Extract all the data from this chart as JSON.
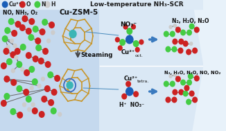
{
  "title": "Low-temperature NH₃-SCR",
  "subtitle": "Cu-ZSM-5",
  "legend_items": [
    {
      "label": "Cu²⁺",
      "color": "#1a5eb8"
    },
    {
      "label": "O",
      "color": "#cc2222"
    },
    {
      "label": "N",
      "color": "#44cc44"
    },
    {
      "label": "H",
      "color": "#cccccc"
    }
  ],
  "top_left_text": "NO, NH₃, O₂",
  "steaming_text": "Steaming",
  "top_pathway": {
    "product_label": "N₂, H₂O, N₂O"
  },
  "bottom_pathway": {
    "product_label": "N₂, H₂O, N₂O, NO, NO₂"
  },
  "bg_color_left": "#c5d9ee",
  "bg_color_right": "#dae8f5",
  "arrow_color": "#3a7abf",
  "zeolite_color": "#c8962a",
  "frame_bg": "#e8f2fa"
}
